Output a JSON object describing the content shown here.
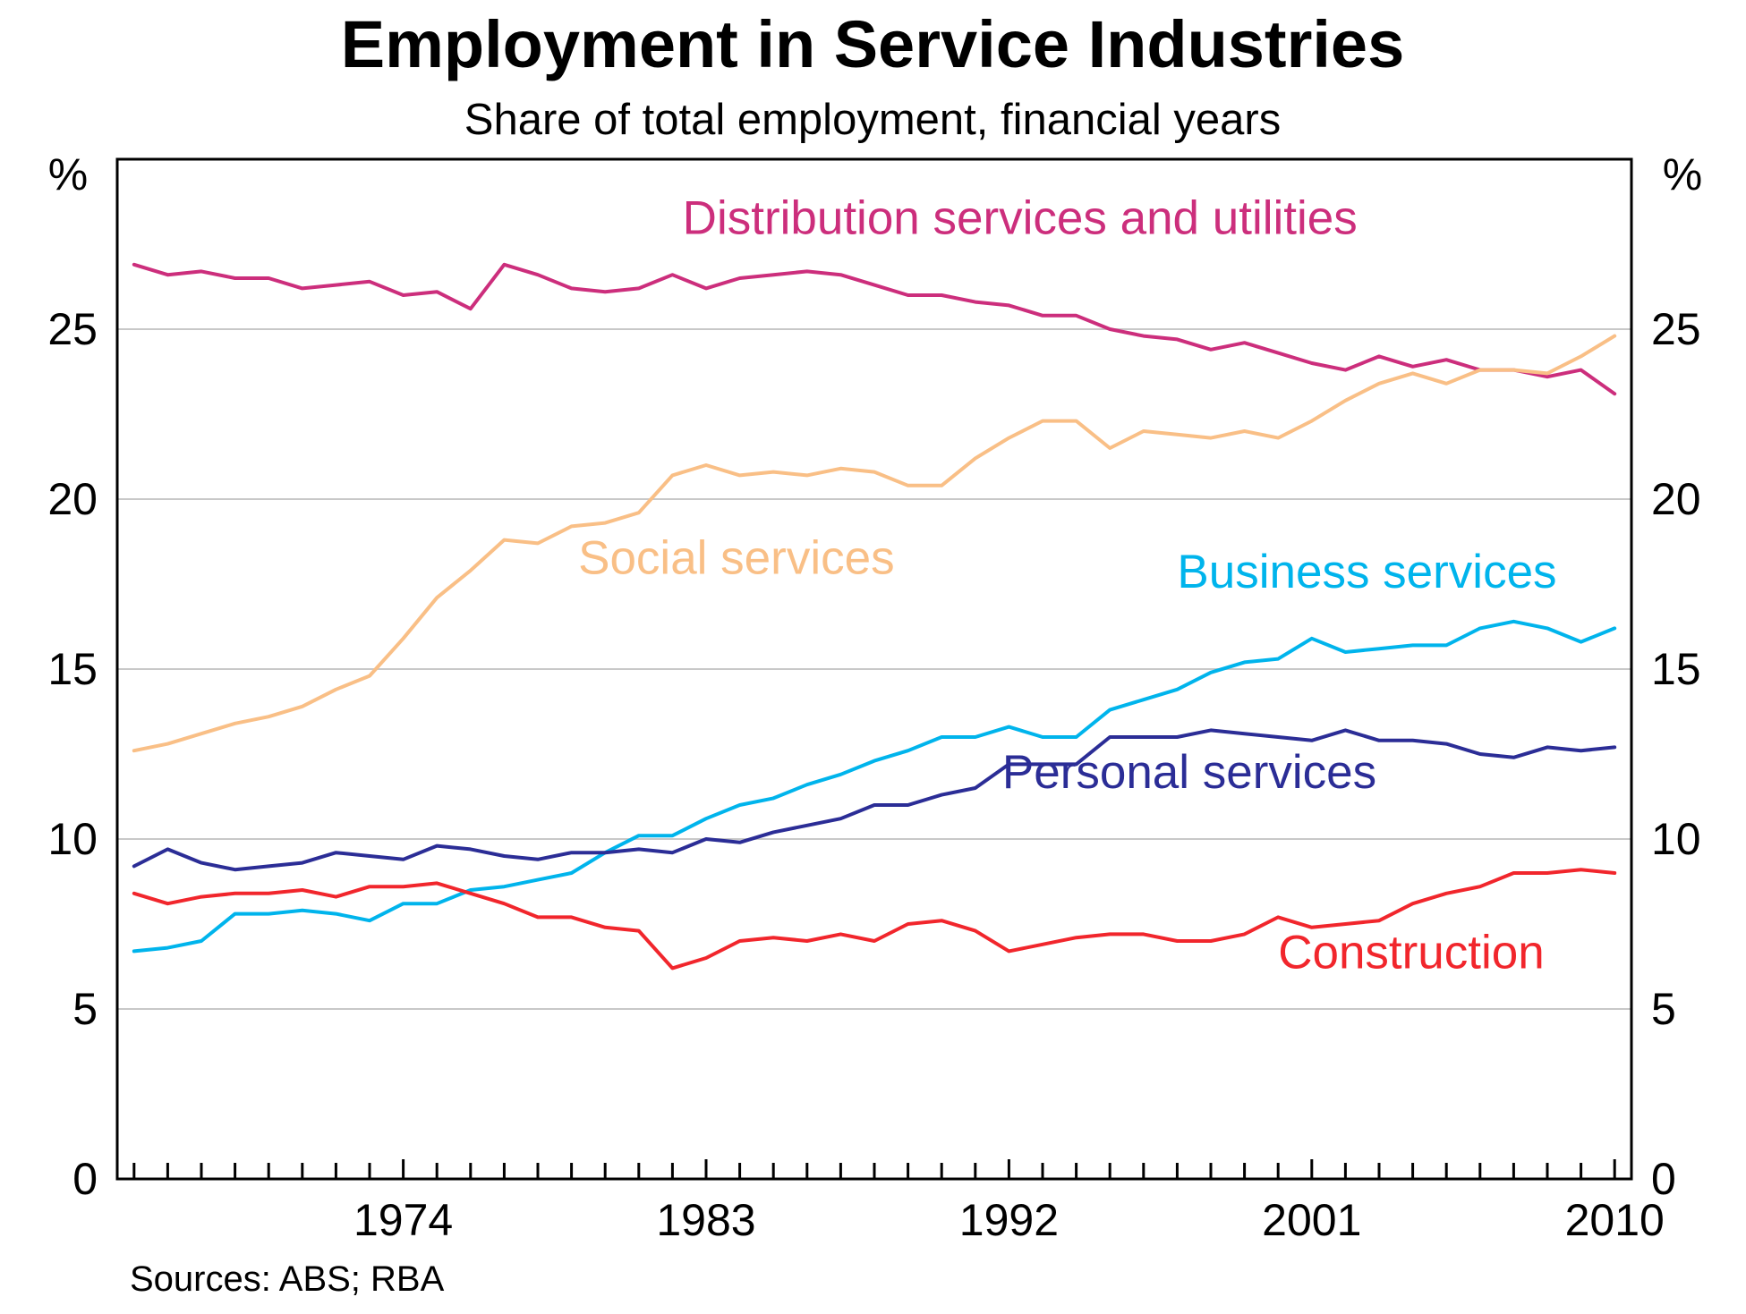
{
  "chart_data": {
    "type": "line",
    "title": "Employment in Service Industries",
    "subtitle": "Share of total employment, financial years",
    "ylabel_left": "%",
    "ylabel_right": "%",
    "ylim": [
      0,
      30
    ],
    "yticks": [
      0,
      5,
      10,
      15,
      20,
      25
    ],
    "ytick_labels": [
      "0",
      "5",
      "10",
      "15",
      "20",
      "25"
    ],
    "xlim": [
      1966,
      2011
    ],
    "xticks": [
      1974,
      1983,
      1992,
      2001,
      2010
    ],
    "xtick_labels": [
      "1974",
      "1983",
      "1992",
      "2001",
      "2010"
    ],
    "grid": true,
    "source": "Sources: ABS; RBA",
    "series": [
      {
        "name": "Distribution services and utilities",
        "color": "#cc2e7c",
        "x": [
          1966,
          1967,
          1968,
          1969,
          1970,
          1971,
          1972,
          1973,
          1974,
          1975,
          1976,
          1977,
          1978,
          1979,
          1980,
          1981,
          1982,
          1983,
          1984,
          1985,
          1986,
          1987,
          1988,
          1989,
          1990,
          1991,
          1992,
          1993,
          1994,
          1995,
          1996,
          1997,
          1998,
          1999,
          2000,
          2001,
          2002,
          2003,
          2004,
          2005,
          2006,
          2007,
          2008,
          2009,
          2010
        ],
        "values": [
          26.9,
          26.6,
          26.7,
          26.5,
          26.5,
          26.2,
          26.3,
          26.4,
          26.0,
          26.1,
          25.6,
          26.9,
          26.6,
          26.2,
          26.1,
          26.2,
          26.6,
          26.2,
          26.5,
          26.6,
          26.7,
          26.6,
          26.3,
          26.0,
          26.0,
          25.8,
          25.7,
          25.4,
          25.4,
          25.0,
          24.8,
          24.7,
          24.4,
          24.6,
          24.3,
          24.0,
          23.8,
          24.2,
          23.9,
          24.1,
          23.8,
          23.8,
          23.6,
          23.8,
          23.1
        ]
      },
      {
        "name": "Social services",
        "color": "#f9bf86",
        "x": [
          1966,
          1967,
          1968,
          1969,
          1970,
          1971,
          1972,
          1973,
          1974,
          1975,
          1976,
          1977,
          1978,
          1979,
          1980,
          1981,
          1982,
          1983,
          1984,
          1985,
          1986,
          1987,
          1988,
          1989,
          1990,
          1991,
          1992,
          1993,
          1994,
          1995,
          1996,
          1997,
          1998,
          1999,
          2000,
          2001,
          2002,
          2003,
          2004,
          2005,
          2006,
          2007,
          2008,
          2009,
          2010
        ],
        "values": [
          12.6,
          12.8,
          13.1,
          13.4,
          13.6,
          13.9,
          14.4,
          14.8,
          15.9,
          17.1,
          17.9,
          18.8,
          18.7,
          19.2,
          19.3,
          19.6,
          20.7,
          21.0,
          20.7,
          20.8,
          20.7,
          20.9,
          20.8,
          20.4,
          20.4,
          21.2,
          21.8,
          22.3,
          22.3,
          21.5,
          22.0,
          21.9,
          21.8,
          22.0,
          21.8,
          22.3,
          22.9,
          23.4,
          23.7,
          23.4,
          23.8,
          23.8,
          23.7,
          24.2,
          24.8
        ]
      },
      {
        "name": "Business services",
        "color": "#00b4ec",
        "x": [
          1966,
          1967,
          1968,
          1969,
          1970,
          1971,
          1972,
          1973,
          1974,
          1975,
          1976,
          1977,
          1978,
          1979,
          1980,
          1981,
          1982,
          1983,
          1984,
          1985,
          1986,
          1987,
          1988,
          1989,
          1990,
          1991,
          1992,
          1993,
          1994,
          1995,
          1996,
          1997,
          1998,
          1999,
          2000,
          2001,
          2002,
          2003,
          2004,
          2005,
          2006,
          2007,
          2008,
          2009,
          2010
        ],
        "values": [
          6.7,
          6.8,
          7.0,
          7.8,
          7.8,
          7.9,
          7.8,
          7.6,
          8.1,
          8.1,
          8.5,
          8.6,
          8.8,
          9.0,
          9.6,
          10.1,
          10.1,
          10.6,
          11.0,
          11.2,
          11.6,
          11.9,
          12.3,
          12.6,
          13.0,
          13.0,
          13.3,
          13.0,
          13.0,
          13.8,
          14.1,
          14.4,
          14.9,
          15.2,
          15.3,
          15.9,
          15.5,
          15.6,
          15.7,
          15.7,
          16.2,
          16.4,
          16.2,
          15.8,
          16.2
        ]
      },
      {
        "name": "Personal services",
        "color": "#2b2d96",
        "x": [
          1966,
          1967,
          1968,
          1969,
          1970,
          1971,
          1972,
          1973,
          1974,
          1975,
          1976,
          1977,
          1978,
          1979,
          1980,
          1981,
          1982,
          1983,
          1984,
          1985,
          1986,
          1987,
          1988,
          1989,
          1990,
          1991,
          1992,
          1993,
          1994,
          1995,
          1996,
          1997,
          1998,
          1999,
          2000,
          2001,
          2002,
          2003,
          2004,
          2005,
          2006,
          2007,
          2008,
          2009,
          2010
        ],
        "values": [
          9.2,
          9.7,
          9.3,
          9.1,
          9.2,
          9.3,
          9.6,
          9.5,
          9.4,
          9.8,
          9.7,
          9.5,
          9.4,
          9.6,
          9.6,
          9.7,
          9.6,
          10.0,
          9.9,
          10.2,
          10.4,
          10.6,
          11.0,
          11.0,
          11.3,
          11.5,
          12.2,
          12.2,
          12.2,
          13.0,
          13.0,
          13.0,
          13.2,
          13.1,
          13.0,
          12.9,
          13.2,
          12.9,
          12.9,
          12.8,
          12.5,
          12.4,
          12.7,
          12.6,
          12.7
        ]
      },
      {
        "name": "Construction",
        "color": "#f1262c",
        "x": [
          1966,
          1967,
          1968,
          1969,
          1970,
          1971,
          1972,
          1973,
          1974,
          1975,
          1976,
          1977,
          1978,
          1979,
          1980,
          1981,
          1982,
          1983,
          1984,
          1985,
          1986,
          1987,
          1988,
          1989,
          1990,
          1991,
          1992,
          1993,
          1994,
          1995,
          1996,
          1997,
          1998,
          1999,
          2000,
          2001,
          2002,
          2003,
          2004,
          2005,
          2006,
          2007,
          2008,
          2009,
          2010
        ],
        "values": [
          8.4,
          8.1,
          8.3,
          8.4,
          8.4,
          8.5,
          8.3,
          8.6,
          8.6,
          8.7,
          8.4,
          8.1,
          7.7,
          7.7,
          7.4,
          7.3,
          6.2,
          6.5,
          7.0,
          7.1,
          7.0,
          7.2,
          7.0,
          7.5,
          7.6,
          7.3,
          6.7,
          6.9,
          7.1,
          7.2,
          7.2,
          7.0,
          7.0,
          7.2,
          7.7,
          7.4,
          7.5,
          7.6,
          8.1,
          8.4,
          8.6,
          9.0,
          9.0,
          9.1,
          9.0
        ]
      }
    ],
    "series_labels": [
      {
        "name": "Distribution services and utilities",
        "text": "Distribution services and utilities",
        "color": "#cc2e7c",
        "anchor_x": 1982.8,
        "anchor_y": 27.8
      },
      {
        "name": "Social services",
        "text": "Social services",
        "color": "#f9bf86",
        "anchor_x": 1979.7,
        "anchor_y": 17.8
      },
      {
        "name": "Business services",
        "text": "Business services",
        "color": "#00b4ec",
        "anchor_x": 1997.5,
        "anchor_y": 17.4
      },
      {
        "name": "Personal services",
        "text": "Personal services",
        "color": "#2b2d96",
        "anchor_x": 1992.3,
        "anchor_y": 11.5
      },
      {
        "name": "Construction",
        "text": "Construction",
        "color": "#f1262c",
        "anchor_x": 2000.5,
        "anchor_y": 6.2
      }
    ]
  }
}
